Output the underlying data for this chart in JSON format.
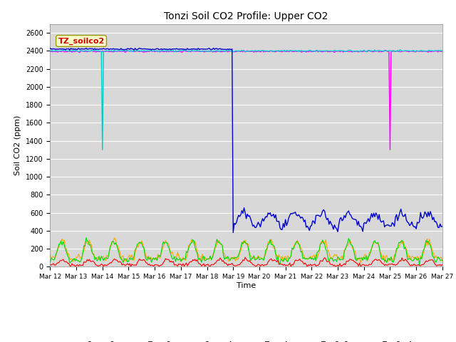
{
  "title": "Tonzi Soil CO2 Profile: Upper CO2",
  "xlabel": "Time",
  "ylabel": "Soil CO2 (ppm)",
  "ylim": [
    0,
    2700
  ],
  "xlim": [
    0,
    360
  ],
  "bg_color": "#d8d8d8",
  "legend_label": "TZ_soilco2",
  "yticks": [
    0,
    200,
    400,
    600,
    800,
    1000,
    1200,
    1400,
    1600,
    1800,
    2000,
    2200,
    2400,
    2600
  ],
  "tick_labels": [
    "Mar 12",
    "Mar 13",
    "Mar 14",
    "Mar 15",
    "Mar 16",
    "Mar 17",
    "Mar 18",
    "Mar 19",
    "Mar 20",
    "Mar 21",
    "Mar 22",
    "Mar 23",
    "Mar 24",
    "Mar 25",
    "Mar 26",
    "Mar 27"
  ],
  "tick_positions": [
    0,
    24,
    48,
    72,
    96,
    120,
    144,
    168,
    192,
    216,
    240,
    264,
    288,
    312,
    336,
    360
  ],
  "colors": {
    "open_2cm": "#ff0000",
    "tree_2cm": "#ffa500",
    "open_4cm": "#00dd00",
    "tree_4cm": "#0000cc",
    "tree2_2cm": "#00cccc",
    "tree2_4cm": "#ff00ff"
  }
}
